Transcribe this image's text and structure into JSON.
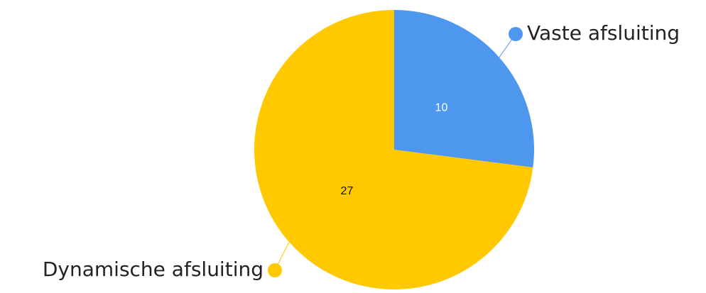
{
  "chart_data": {
    "type": "pie",
    "title": "",
    "slices": [
      {
        "label": "Vaste afsluiting",
        "value": 10,
        "color": "#4E97EE",
        "value_text_color": "#ffffff"
      },
      {
        "label": "Dynamische afsluiting",
        "value": 27,
        "color": "#FFC800",
        "value_text_color": "#111111"
      }
    ],
    "start_angle_deg": 0,
    "direction": "clockwise",
    "labels_outside_with_leader_lines": true
  }
}
